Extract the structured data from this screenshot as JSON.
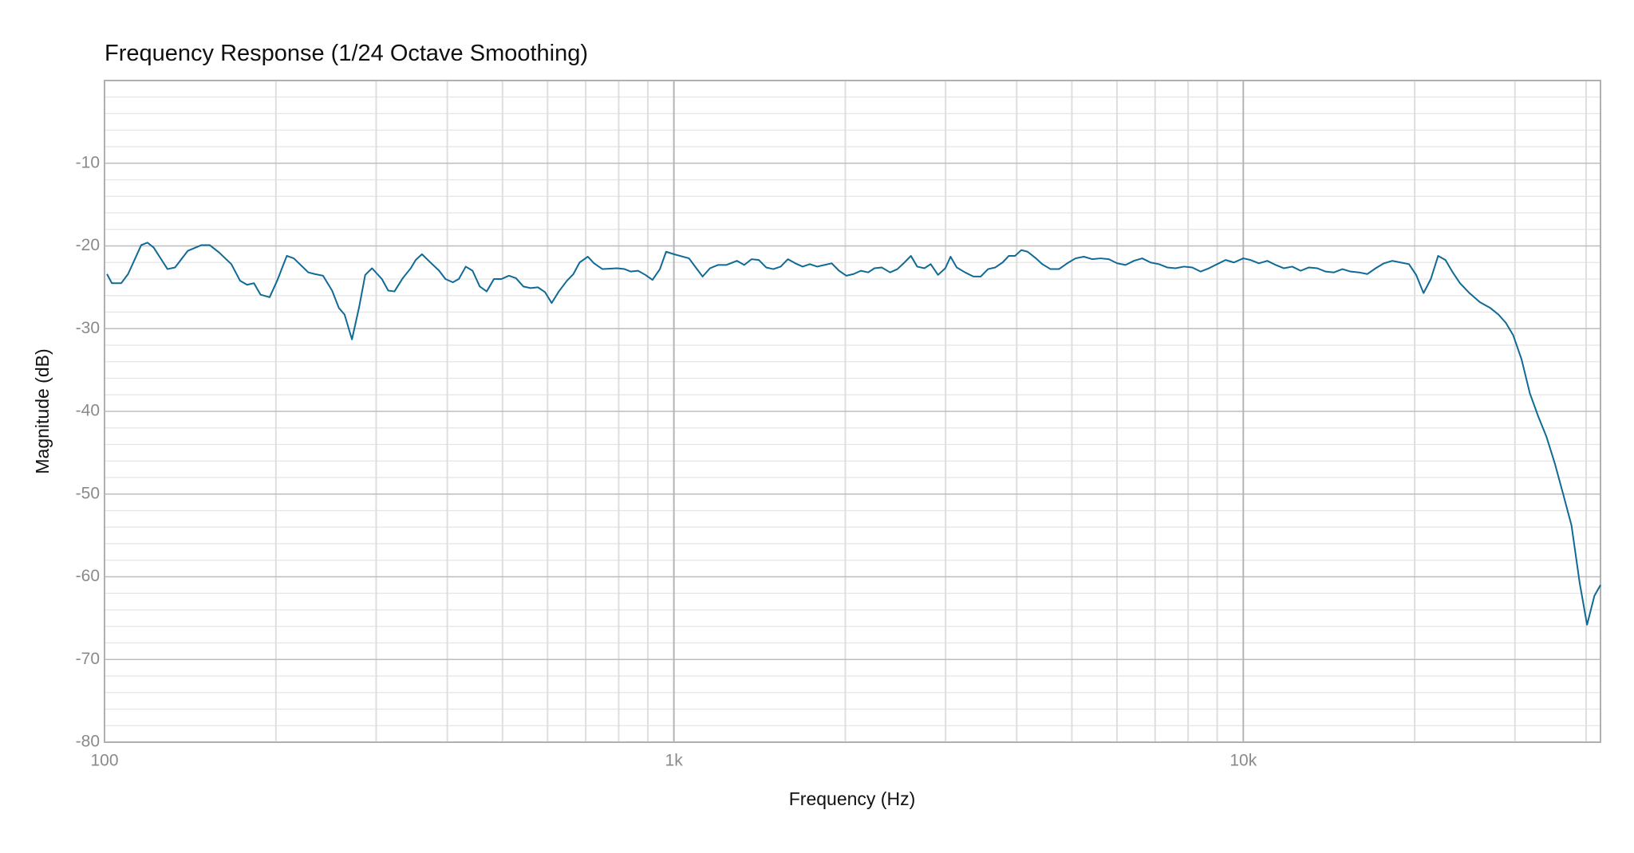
{
  "chart_data": {
    "type": "line",
    "title": "Frequency Response",
    "subtitle": "(1/24 Octave Smoothing)",
    "xlabel": "Frequency (Hz)",
    "ylabel": "Magnitude (dB)",
    "xscale": "log",
    "grid": true,
    "xlim": [
      100,
      42400
    ],
    "ylim": [
      -80,
      0
    ],
    "xticks": [
      100,
      {
        "value": 1000,
        "label": "1k"
      },
      {
        "value": 10000,
        "label": "10k"
      }
    ],
    "xminorticks": [
      200,
      300,
      400,
      500,
      600,
      700,
      800,
      900,
      2000,
      3000,
      4000,
      5000,
      6000,
      7000,
      8000,
      9000,
      20000,
      30000,
      40000
    ],
    "yticks": [
      -80,
      -70,
      -60,
      -50,
      -40,
      -30,
      -20,
      -10
    ],
    "yminorticks": [
      -78,
      -76,
      -74,
      -72,
      -68,
      -66,
      -64,
      -62,
      -58,
      -56,
      -54,
      -52,
      -48,
      -46,
      -44,
      -42,
      -38,
      -36,
      -34,
      -32,
      -28,
      -26,
      -24,
      -22,
      -18,
      -16,
      -14,
      -12,
      -8,
      -6,
      -4,
      -2
    ],
    "series": [
      {
        "name": "Frequency Response",
        "color": "#0f6a96",
        "x": [
          101,
          103,
          107,
          110,
          116,
          119,
          122,
          126,
          129,
          133,
          140,
          148,
          153,
          159,
          167,
          173,
          178,
          183,
          188,
          195,
          201,
          209,
          215,
          228,
          234,
          242,
          251,
          258,
          264,
          272,
          280,
          287,
          295,
          307,
          315,
          323,
          334,
          345,
          352,
          361,
          375,
          387,
          397,
          409,
          419,
          431,
          443,
          456,
          469,
          483,
          498,
          513,
          528,
          544,
          560,
          577,
          594,
          610,
          628,
          649,
          666,
          683,
          706,
          724,
          749,
          795,
          819,
          840,
          865,
          891,
          917,
          945,
          969,
          1000,
          1063,
          1095,
          1123,
          1157,
          1196,
          1237,
          1290,
          1329,
          1369,
          1410,
          1452,
          1495,
          1540,
          1586,
          1634,
          1683,
          1733,
          1785,
          1838,
          1893,
          1950,
          2008,
          2068,
          2130,
          2194,
          2250,
          2317,
          2397,
          2469,
          2532,
          2608,
          2675,
          2754,
          2825,
          2910,
          2997,
          3061,
          3139,
          3246,
          3358,
          3458,
          3562,
          3668,
          3778,
          3875,
          3974,
          4075,
          4180,
          4324,
          4436,
          4586,
          4745,
          4907,
          5075,
          5248,
          5428,
          5615,
          5806,
          6005,
          6212,
          6425,
          6645,
          6872,
          7108,
          7352,
          7604,
          7864,
          8134,
          8414,
          8701,
          9000,
          9309,
          9627,
          10000,
          10300,
          10650,
          11020,
          11400,
          11790,
          12190,
          12610,
          13040,
          13490,
          13950,
          14430,
          14930,
          15440,
          15970,
          16510,
          17080,
          17660,
          18270,
          18890,
          19540,
          20120,
          20730,
          21350,
          21990,
          22650,
          23330,
          24020,
          24960,
          26030,
          27150,
          28070,
          28920,
          29790,
          30810,
          31860,
          32960,
          34090,
          35250,
          36460,
          37710,
          38990,
          40160,
          41370,
          42400
        ],
        "values": [
          -23.4,
          -24.5,
          -24.5,
          -23.4,
          -19.9,
          -19.6,
          -20.2,
          -21.7,
          -22.8,
          -22.6,
          -20.6,
          -19.9,
          -19.9,
          -20.8,
          -22.2,
          -24.2,
          -24.7,
          -24.5,
          -25.9,
          -26.2,
          -24.2,
          -21.2,
          -21.5,
          -23.2,
          -23.4,
          -23.6,
          -25.4,
          -27.5,
          -28.3,
          -31.3,
          -27.4,
          -23.5,
          -22.7,
          -24.0,
          -25.4,
          -25.5,
          -23.9,
          -22.7,
          -21.7,
          -21.0,
          -22.1,
          -23.0,
          -24.0,
          -24.4,
          -24.0,
          -22.5,
          -23.0,
          -24.9,
          -25.5,
          -24.0,
          -24.0,
          -23.6,
          -23.9,
          -24.9,
          -25.1,
          -25.0,
          -25.6,
          -26.9,
          -25.5,
          -24.2,
          -23.4,
          -22.0,
          -21.3,
          -22.1,
          -22.8,
          -22.7,
          -22.8,
          -23.1,
          -23.0,
          -23.5,
          -24.1,
          -22.8,
          -20.7,
          -21.0,
          -21.5,
          -22.7,
          -23.7,
          -22.7,
          -22.3,
          -22.3,
          -21.8,
          -22.3,
          -21.6,
          -21.7,
          -22.6,
          -22.8,
          -22.5,
          -21.6,
          -22.1,
          -22.5,
          -22.2,
          -22.5,
          -22.3,
          -22.1,
          -23.0,
          -23.6,
          -23.4,
          -23.0,
          -23.2,
          -22.7,
          -22.6,
          -23.2,
          -22.8,
          -22.1,
          -21.2,
          -22.5,
          -22.7,
          -22.2,
          -23.5,
          -22.7,
          -21.3,
          -22.6,
          -23.2,
          -23.7,
          -23.7,
          -22.8,
          -22.6,
          -22.0,
          -21.2,
          -21.2,
          -20.5,
          -20.7,
          -21.5,
          -22.2,
          -22.8,
          -22.8,
          -22.1,
          -21.5,
          -21.3,
          -21.6,
          -21.5,
          -21.6,
          -22.1,
          -22.3,
          -21.8,
          -21.5,
          -22.0,
          -22.2,
          -22.6,
          -22.7,
          -22.5,
          -22.6,
          -23.1,
          -22.7,
          -22.2,
          -21.7,
          -22.0,
          -21.5,
          -21.7,
          -22.1,
          -21.8,
          -22.3,
          -22.7,
          -22.5,
          -23.0,
          -22.6,
          -22.7,
          -23.1,
          -23.2,
          -22.8,
          -23.1,
          -23.2,
          -23.4,
          -22.7,
          -22.1,
          -21.8,
          -22.0,
          -22.2,
          -23.5,
          -25.7,
          -24.0,
          -21.2,
          -21.7,
          -23.2,
          -24.5,
          -25.7,
          -26.8,
          -27.5,
          -28.3,
          -29.3,
          -30.8,
          -33.7,
          -37.8,
          -40.6,
          -43.1,
          -46.3,
          -50.0,
          -53.8,
          -60.8,
          -65.8,
          -62.3,
          -61.0
        ]
      }
    ]
  }
}
